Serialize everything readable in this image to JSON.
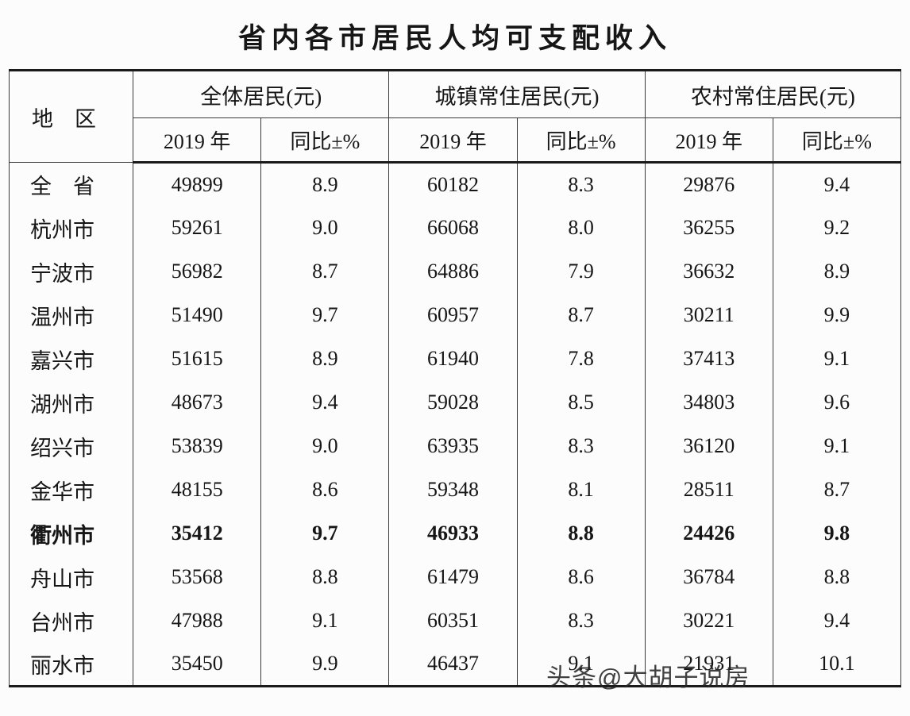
{
  "title": "省内各市居民人均可支配收入",
  "watermark": "头条@大胡子说房",
  "chart_data": {
    "type": "table",
    "title": "省内各市居民人均可支配收入",
    "region_column_header": "地　区",
    "column_groups": [
      {
        "label": "全体居民(元)",
        "subcolumns": [
          "2019 年",
          "同比±%"
        ]
      },
      {
        "label": "城镇常住居民(元)",
        "subcolumns": [
          "2019 年",
          "同比±%"
        ]
      },
      {
        "label": "农村常住居民(元)",
        "subcolumns": [
          "2019 年",
          "同比±%"
        ]
      }
    ],
    "rows": [
      {
        "region": "全　省",
        "values": [
          "49899",
          "8.9",
          "60182",
          "8.3",
          "29876",
          "9.4"
        ],
        "bold": false
      },
      {
        "region": "杭州市",
        "values": [
          "59261",
          "9.0",
          "66068",
          "8.0",
          "36255",
          "9.2"
        ],
        "bold": false
      },
      {
        "region": "宁波市",
        "values": [
          "56982",
          "8.7",
          "64886",
          "7.9",
          "36632",
          "8.9"
        ],
        "bold": false
      },
      {
        "region": "温州市",
        "values": [
          "51490",
          "9.7",
          "60957",
          "8.7",
          "30211",
          "9.9"
        ],
        "bold": false
      },
      {
        "region": "嘉兴市",
        "values": [
          "51615",
          "8.9",
          "61940",
          "7.8",
          "37413",
          "9.1"
        ],
        "bold": false
      },
      {
        "region": "湖州市",
        "values": [
          "48673",
          "9.4",
          "59028",
          "8.5",
          "34803",
          "9.6"
        ],
        "bold": false
      },
      {
        "region": "绍兴市",
        "values": [
          "53839",
          "9.0",
          "63935",
          "8.3",
          "36120",
          "9.1"
        ],
        "bold": false
      },
      {
        "region": "金华市",
        "values": [
          "48155",
          "8.6",
          "59348",
          "8.1",
          "28511",
          "8.7"
        ],
        "bold": false
      },
      {
        "region": "衢州市",
        "values": [
          "35412",
          "9.7",
          "46933",
          "8.8",
          "24426",
          "9.8"
        ],
        "bold": true
      },
      {
        "region": "舟山市",
        "values": [
          "53568",
          "8.8",
          "61479",
          "8.6",
          "36784",
          "8.8"
        ],
        "bold": false
      },
      {
        "region": "台州市",
        "values": [
          "47988",
          "9.1",
          "60351",
          "8.3",
          "30221",
          "9.4"
        ],
        "bold": false
      },
      {
        "region": "丽水市",
        "values": [
          "35450",
          "9.9",
          "46437",
          "9.1",
          "21931",
          "10.1"
        ],
        "bold": false
      }
    ]
  }
}
